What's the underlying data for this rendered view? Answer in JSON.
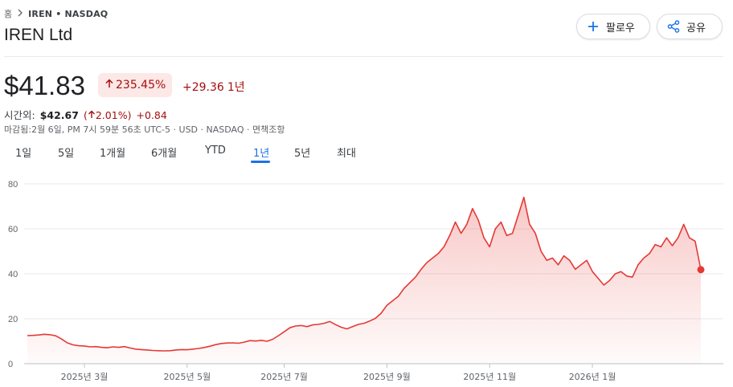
{
  "breadcrumb": {
    "home": "홈",
    "ticker": "IREN • NASDAQ"
  },
  "company": "IREN Ltd",
  "buttons": {
    "follow": "팔로우",
    "share": "공유"
  },
  "quote": {
    "price": "$41.83",
    "change_pct": "235.45%",
    "change_abs": "+29.36",
    "period": "1년"
  },
  "after_hours": {
    "label": "시간외:",
    "price": "$42.67",
    "pct": "2.01%",
    "abs": "+0.84"
  },
  "meta": "마감됨:2월 6일, PM 7시 59분 56초 UTC-5 · USD · NASDAQ · 면책조항",
  "tabs": [
    {
      "label": "1일",
      "active": false
    },
    {
      "label": "5일",
      "active": false
    },
    {
      "label": "1개월",
      "active": false
    },
    {
      "label": "6개월",
      "active": false
    },
    {
      "label": "YTD",
      "active": false
    },
    {
      "label": "1년",
      "active": true
    },
    {
      "label": "5년",
      "active": false
    },
    {
      "label": "최대",
      "active": false
    }
  ],
  "colors": {
    "line": "#e53935",
    "accent": "#1a73e8",
    "negative": "#a50e0e"
  },
  "chart_data": {
    "type": "area",
    "ylim": [
      0,
      80
    ],
    "y_ticks": [
      "0",
      "20",
      "40",
      "60",
      "80"
    ],
    "x_ticks": [
      {
        "label": "2025년 3월",
        "index": 10
      },
      {
        "label": "2025년 5월",
        "index": 28
      },
      {
        "label": "2025년 7월",
        "index": 45
      },
      {
        "label": "2025년 9월",
        "index": 63
      },
      {
        "label": "2025년 11월",
        "index": 81
      },
      {
        "label": "2026년 1월",
        "index": 99
      }
    ],
    "series": [
      {
        "values": [
          12.5,
          12.6,
          12.8,
          13.1,
          12.9,
          12.4,
          11.0,
          9.3,
          8.4,
          8.0,
          7.9,
          7.5,
          7.6,
          7.3,
          7.1,
          7.5,
          7.3,
          7.6,
          7.0,
          6.5,
          6.3,
          6.1,
          5.9,
          5.8,
          5.7,
          5.8,
          6.1,
          6.3,
          6.2,
          6.5,
          6.8,
          7.2,
          7.8,
          8.5,
          9.0,
          9.2,
          9.3,
          9.1,
          9.6,
          10.3,
          10.1,
          10.4,
          10.0,
          10.9,
          12.5,
          14.2,
          16.0,
          16.8,
          17.0,
          16.5,
          17.3,
          17.5,
          18.0,
          18.8,
          17.4,
          16.2,
          15.5,
          16.5,
          17.5,
          18.0,
          19.0,
          20.2,
          22.5,
          26.0,
          28.0,
          30.0,
          33.5,
          36.0,
          38.5,
          42.0,
          45.0,
          47.0,
          49.0,
          52.0,
          57.0,
          63.0,
          58.0,
          62.0,
          69.0,
          64.0,
          56.0,
          52.0,
          60.0,
          63.0,
          57.0,
          58.0,
          66.0,
          74.0,
          62.0,
          58.0,
          50.0,
          46.0,
          47.0,
          44.0,
          48.0,
          46.0,
          42.0,
          44.0,
          46.0,
          41.0,
          38.0,
          35.0,
          37.0,
          40.0,
          41.0,
          39.0,
          38.5,
          44.0,
          47.0,
          49.0,
          53.0,
          52.0,
          56.0,
          52.5,
          56.0,
          62.0,
          56.0,
          54.5,
          41.83
        ]
      }
    ]
  }
}
